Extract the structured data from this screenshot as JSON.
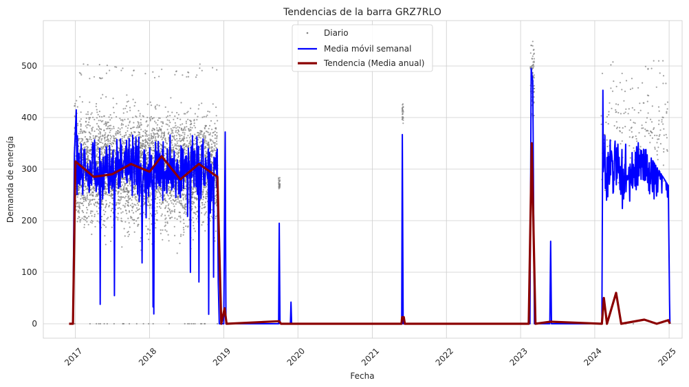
{
  "chart_data": {
    "type": "line",
    "title": "Tendencias de la barra GRZ7RLO",
    "xlabel": "Fecha",
    "ylabel": "Demanda de energía",
    "x_ticks": [
      "2017",
      "2018",
      "2019",
      "2020",
      "2021",
      "2022",
      "2023",
      "2024",
      "2025"
    ],
    "x_range": [
      "2016-07-27",
      "2025-03-06"
    ],
    "y_ticks": [
      0,
      100,
      200,
      300,
      400,
      500
    ],
    "ylim": [
      -28,
      588
    ],
    "grid": true,
    "legend_position": "top-center",
    "colors": {
      "daily": "#808080",
      "weekly": "#0000ff",
      "annual": "#8b0000",
      "grid": "#cccccc"
    },
    "series": [
      {
        "name": "Diario",
        "style": "scatter",
        "segments": [
          {
            "start": "2016-12-27",
            "end": "2018-12-02",
            "mean": 300,
            "spread": 140,
            "peak": 505
          },
          {
            "start": "2019-09-28",
            "end": "2019-10-05",
            "mean": 270,
            "spread": 20
          },
          {
            "start": "2021-05-28",
            "end": "2021-06-03",
            "mean": 410,
            "spread": 30
          },
          {
            "start": "2023-02-18",
            "end": "2023-03-10",
            "mean": 470,
            "spread": 90,
            "peak": 560
          },
          {
            "start": "2024-02-01",
            "end": "2024-12-31",
            "mean": 380,
            "spread": 130,
            "peak": 510,
            "sparse": true
          }
        ]
      },
      {
        "name": "Media móvil semanal",
        "style": "line",
        "points": [
          [
            "2016-12-01",
            0
          ],
          [
            "2016-12-20",
            0
          ],
          [
            "2016-12-27",
            330
          ],
          [
            "2017-01-05",
            415
          ],
          [
            "2018-11-30",
            330
          ],
          [
            "2018-12-05",
            80
          ],
          [
            "2018-12-10",
            0
          ],
          [
            "2019-01-01",
            0
          ],
          [
            "2019-01-08",
            372
          ],
          [
            "2019-01-12",
            0
          ],
          [
            "2019-09-28",
            0
          ],
          [
            "2019-10-01",
            195
          ],
          [
            "2019-10-05",
            0
          ],
          [
            "2019-11-25",
            0
          ],
          [
            "2019-11-28",
            42
          ],
          [
            "2019-12-01",
            0
          ],
          [
            "2021-05-26",
            0
          ],
          [
            "2021-05-29",
            367
          ],
          [
            "2021-06-02",
            0
          ],
          [
            "2023-02-16",
            0
          ],
          [
            "2023-02-22",
            495
          ],
          [
            "2023-03-02",
            470
          ],
          [
            "2023-03-10",
            0
          ],
          [
            "2023-05-25",
            0
          ],
          [
            "2023-05-29",
            160
          ],
          [
            "2023-06-02",
            0
          ],
          [
            "2024-02-05",
            0
          ],
          [
            "2024-02-10",
            453
          ],
          [
            "2024-12-28",
            248
          ],
          [
            "2025-01-03",
            45
          ],
          [
            "2025-01-05",
            0
          ]
        ]
      },
      {
        "name": "Tendencia (Media anual)",
        "style": "line",
        "points": [
          [
            "2016-12-01",
            0
          ],
          [
            "2016-12-20",
            0
          ],
          [
            "2017-01-01",
            315
          ],
          [
            "2017-04-01",
            285
          ],
          [
            "2017-07-01",
            290
          ],
          [
            "2017-10-01",
            310
          ],
          [
            "2018-01-01",
            295
          ],
          [
            "2018-03-01",
            325
          ],
          [
            "2018-06-01",
            280
          ],
          [
            "2018-09-01",
            310
          ],
          [
            "2018-12-01",
            285
          ],
          [
            "2018-12-20",
            0
          ],
          [
            "2019-01-05",
            30
          ],
          [
            "2019-01-15",
            0
          ],
          [
            "2019-10-01",
            5
          ],
          [
            "2019-10-10",
            0
          ],
          [
            "2021-05-25",
            0
          ],
          [
            "2021-05-28",
            13
          ],
          [
            "2021-06-05",
            13
          ],
          [
            "2021-06-10",
            0
          ],
          [
            "2023-02-10",
            0
          ],
          [
            "2023-02-25",
            350
          ],
          [
            "2023-03-15",
            0
          ],
          [
            "2023-05-28",
            4
          ],
          [
            "2024-02-05",
            0
          ],
          [
            "2024-02-15",
            50
          ],
          [
            "2024-03-01",
            0
          ],
          [
            "2024-04-15",
            60
          ],
          [
            "2024-05-10",
            0
          ],
          [
            "2024-09-01",
            8
          ],
          [
            "2024-11-01",
            0
          ],
          [
            "2024-12-28",
            7
          ],
          [
            "2025-01-05",
            0
          ]
        ]
      }
    ]
  }
}
